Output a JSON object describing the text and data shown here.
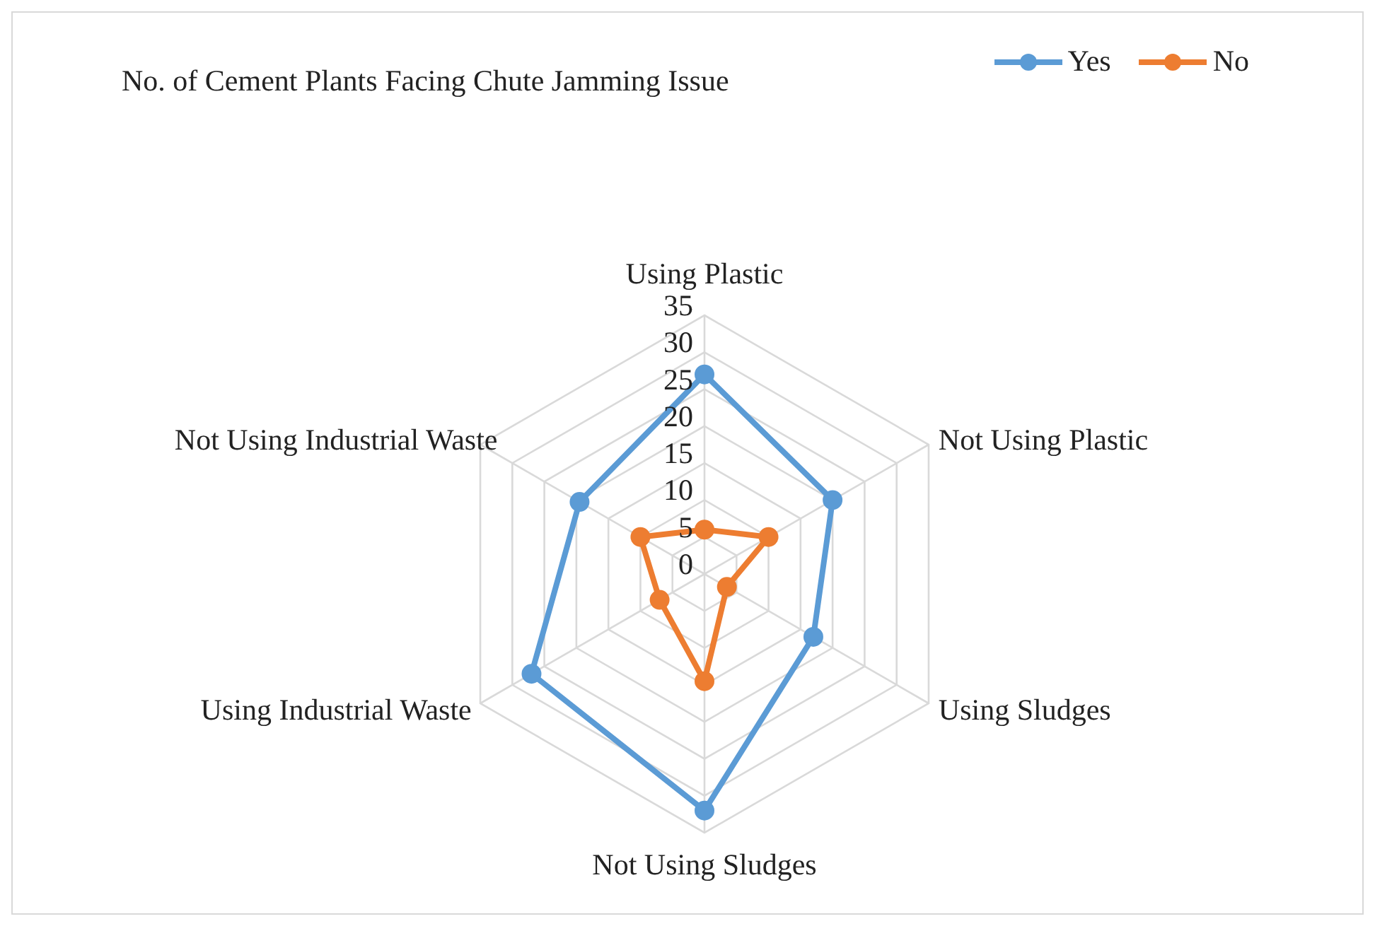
{
  "chart_data": {
    "type": "radar",
    "title": "No. of Cement Plants Facing Chute Jamming Issue",
    "categories": [
      "Using Plastic",
      "Not Using Plastic",
      "Using Sludges",
      "Not Using Sludges",
      "Using Industrial Waste",
      "Not Using Industrial Waste"
    ],
    "series": [
      {
        "name": "Yes",
        "color": "#5b9bd5",
        "values": [
          27,
          20,
          17,
          32,
          27,
          19.5
        ]
      },
      {
        "name": "No",
        "color": "#ed7d31",
        "values": [
          6,
          10,
          3.5,
          14.5,
          7,
          10
        ]
      }
    ],
    "ylim": [
      0,
      35
    ],
    "yticks": [
      0,
      5,
      10,
      15,
      20,
      25,
      30,
      35
    ],
    "grid": true,
    "legend": "top right",
    "marker": "circle"
  }
}
